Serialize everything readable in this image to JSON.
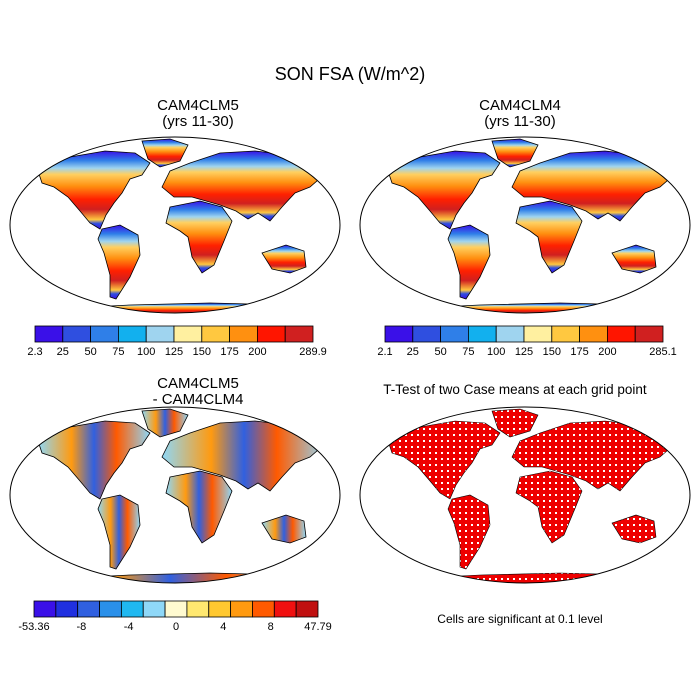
{
  "main_title": "SON FSA (W/m^2)",
  "panels": [
    {
      "id": "p1",
      "title": "CAM4CLM5",
      "subtitle": "(yrs 11-30)"
    },
    {
      "id": "p2",
      "title": "CAM4CLM4",
      "subtitle": "(yrs 11-30)"
    },
    {
      "id": "p3",
      "title": "CAM4CLM5",
      "subtitle": "- CAM4CLM4"
    },
    {
      "id": "p4",
      "title": "T-Test of two Case means at each grid point"
    }
  ],
  "colorbars": [
    {
      "id": "cb1",
      "labels": [
        "2.3",
        "25",
        "50",
        "75",
        "100",
        "125",
        "150",
        "175",
        "200",
        "",
        "289.9"
      ],
      "colors": [
        "#3a10e8",
        "#2f4fe0",
        "#2f7fe8",
        "#12b0ee",
        "#9fd4ef",
        "#fff0a0",
        "#ffc840",
        "#ff9010",
        "#ff1500",
        "#d02020"
      ]
    },
    {
      "id": "cb2",
      "labels": [
        "2.1",
        "25",
        "50",
        "75",
        "100",
        "125",
        "150",
        "175",
        "200",
        "",
        "285.1"
      ],
      "colors": [
        "#3a10e8",
        "#2f4fe0",
        "#2f7fe8",
        "#12b0ee",
        "#9fd4ef",
        "#fff0a0",
        "#ffc840",
        "#ff9010",
        "#ff1500",
        "#d02020"
      ]
    },
    {
      "id": "cb3",
      "labels": [
        "-53.36",
        "",
        "-8",
        "",
        "-4",
        "",
        "0",
        "",
        "4",
        "",
        "8",
        "",
        "47.79"
      ],
      "colors": [
        "#3a10e8",
        "#2030e0",
        "#3060e0",
        "#2a90ea",
        "#20b8f0",
        "#8fd8f8",
        "#fffad0",
        "#ffe870",
        "#ffc830",
        "#ff9a10",
        "#ff5a00",
        "#f01010",
        "#c01010"
      ]
    }
  ],
  "footnote": "Cells are significant at 0.1 level",
  "colors": {
    "land_outline": "#000000",
    "ocean": "#ffffff",
    "significant": "#ee0000"
  }
}
